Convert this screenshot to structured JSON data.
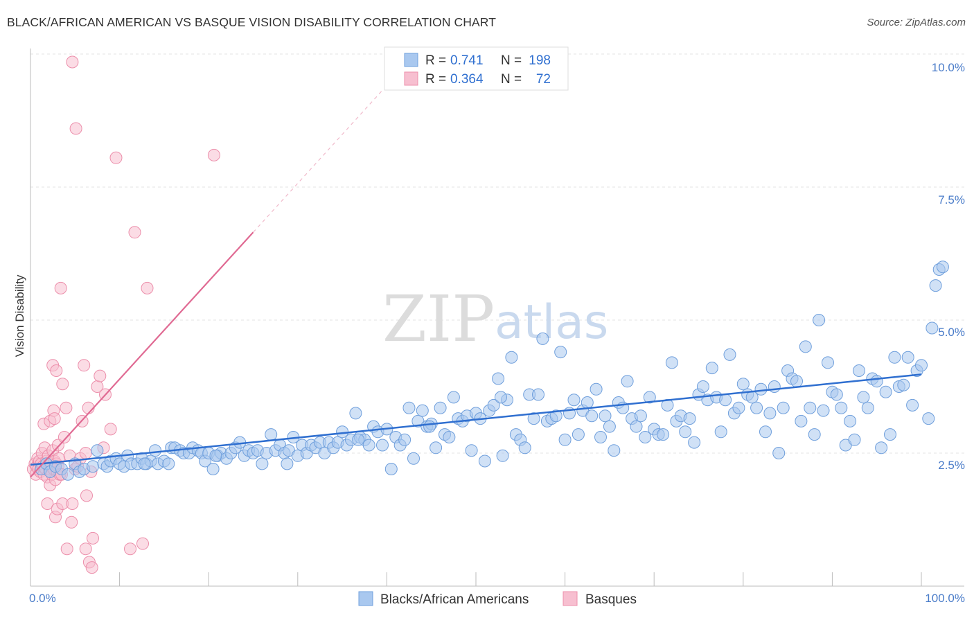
{
  "header": {
    "title": "BLACK/AFRICAN AMERICAN VS BASQUE VISION DISABILITY CORRELATION CHART",
    "source": "Source: ZipAtlas.com"
  },
  "legend": {
    "row1": {
      "r_label": "R =",
      "r_value": "0.741",
      "n_label": "N =",
      "n_value": "198"
    },
    "row2": {
      "r_label": "R =",
      "r_value": "0.364",
      "n_label": "N =",
      "n_value": "72"
    }
  },
  "bottom_legend": {
    "series1": "Blacks/African Americans",
    "series2": "Basques"
  },
  "watermark": {
    "part1": "ZIP",
    "part2": "atlas"
  },
  "colors": {
    "blue_fill": "#a9c8ef",
    "blue_stroke": "#6f9fdc",
    "blue_line": "#2f6fd0",
    "pink_fill": "#f7bfd0",
    "pink_stroke": "#ec8fab",
    "pink_line": "#e06a93",
    "axis_label": "#4a7cc9",
    "grid": "#e3e3e3"
  },
  "chart_data": {
    "type": "scatter",
    "title": "BLACK/AFRICAN AMERICAN VS BASQUE VISION DISABILITY CORRELATION CHART",
    "xlabel": "",
    "ylabel": "Vision Disability",
    "xlim": [
      0,
      100
    ],
    "ylim": [
      0,
      10.5
    ],
    "x_tick_labels": [
      "0.0%",
      "100.0%"
    ],
    "y_ticks": [
      2.5,
      5.0,
      7.5,
      10.0
    ],
    "y_tick_labels": [
      "2.5%",
      "5.0%",
      "7.5%",
      "10.0%"
    ],
    "grid": true,
    "legend_position": "top-center",
    "series": [
      {
        "name": "Blacks/African Americans",
        "R": 0.741,
        "N": 198,
        "trend": {
          "x": [
            0,
            100
          ],
          "y": [
            2.28,
            3.98
          ]
        },
        "points": [
          [
            1.2,
            2.2
          ],
          [
            1.8,
            2.3
          ],
          [
            2.2,
            2.15
          ],
          [
            2.8,
            2.25
          ],
          [
            3.5,
            2.2
          ],
          [
            4.2,
            2.1
          ],
          [
            5.0,
            2.3
          ],
          [
            5.5,
            2.15
          ],
          [
            6.0,
            2.2
          ],
          [
            7.0,
            2.25
          ],
          [
            7.5,
            2.55
          ],
          [
            8.2,
            2.3
          ],
          [
            8.6,
            2.25
          ],
          [
            9.0,
            2.35
          ],
          [
            9.6,
            2.4
          ],
          [
            10.0,
            2.3
          ],
          [
            10.5,
            2.25
          ],
          [
            10.9,
            2.45
          ],
          [
            11.3,
            2.3
          ],
          [
            12.0,
            2.3
          ],
          [
            12.5,
            2.4
          ],
          [
            13.0,
            2.3
          ],
          [
            13.5,
            2.35
          ],
          [
            14.0,
            2.55
          ],
          [
            14.3,
            2.3
          ],
          [
            15.0,
            2.35
          ],
          [
            15.5,
            2.3
          ],
          [
            15.8,
            2.6
          ],
          [
            16.2,
            2.6
          ],
          [
            16.8,
            2.55
          ],
          [
            17.2,
            2.5
          ],
          [
            17.8,
            2.5
          ],
          [
            18.2,
            2.6
          ],
          [
            18.8,
            2.55
          ],
          [
            19.2,
            2.5
          ],
          [
            19.6,
            2.35
          ],
          [
            20.0,
            2.5
          ],
          [
            20.5,
            2.2
          ],
          [
            21.0,
            2.45
          ],
          [
            21.4,
            2.5
          ],
          [
            22.0,
            2.4
          ],
          [
            22.5,
            2.5
          ],
          [
            23.0,
            2.6
          ],
          [
            23.5,
            2.7
          ],
          [
            24.0,
            2.45
          ],
          [
            24.5,
            2.55
          ],
          [
            25.0,
            2.5
          ],
          [
            25.5,
            2.55
          ],
          [
            26.0,
            2.3
          ],
          [
            26.5,
            2.5
          ],
          [
            27.0,
            2.85
          ],
          [
            27.5,
            2.55
          ],
          [
            28.0,
            2.65
          ],
          [
            28.5,
            2.5
          ],
          [
            29.0,
            2.55
          ],
          [
            29.5,
            2.8
          ],
          [
            30.0,
            2.45
          ],
          [
            30.5,
            2.65
          ],
          [
            31.0,
            2.5
          ],
          [
            31.5,
            2.65
          ],
          [
            32.0,
            2.6
          ],
          [
            32.5,
            2.7
          ],
          [
            33.0,
            2.5
          ],
          [
            33.5,
            2.7
          ],
          [
            34.0,
            2.6
          ],
          [
            34.5,
            2.7
          ],
          [
            35.0,
            2.9
          ],
          [
            35.5,
            2.65
          ],
          [
            36.0,
            2.75
          ],
          [
            36.5,
            3.25
          ],
          [
            37.0,
            2.8
          ],
          [
            37.5,
            2.75
          ],
          [
            38.0,
            2.65
          ],
          [
            38.5,
            3.0
          ],
          [
            39.0,
            2.9
          ],
          [
            39.5,
            2.65
          ],
          [
            40.0,
            2.95
          ],
          [
            40.5,
            2.2
          ],
          [
            41.0,
            2.8
          ],
          [
            41.5,
            2.65
          ],
          [
            42.0,
            2.75
          ],
          [
            42.5,
            3.35
          ],
          [
            43.0,
            2.4
          ],
          [
            43.5,
            3.1
          ],
          [
            44.0,
            3.3
          ],
          [
            44.5,
            3.0
          ],
          [
            45.0,
            3.05
          ],
          [
            45.5,
            2.6
          ],
          [
            46.0,
            3.35
          ],
          [
            46.5,
            2.85
          ],
          [
            47.0,
            2.8
          ],
          [
            47.5,
            3.55
          ],
          [
            48.0,
            3.15
          ],
          [
            48.5,
            3.1
          ],
          [
            49.0,
            3.2
          ],
          [
            49.5,
            2.55
          ],
          [
            50.0,
            3.25
          ],
          [
            50.5,
            3.15
          ],
          [
            51.0,
            2.35
          ],
          [
            51.5,
            3.3
          ],
          [
            52.0,
            3.4
          ],
          [
            52.5,
            3.9
          ],
          [
            53.0,
            2.45
          ],
          [
            53.5,
            3.5
          ],
          [
            54.0,
            4.3
          ],
          [
            54.5,
            2.85
          ],
          [
            55.0,
            2.75
          ],
          [
            55.5,
            2.6
          ],
          [
            56.0,
            3.6
          ],
          [
            56.5,
            3.15
          ],
          [
            57.0,
            3.6
          ],
          [
            57.5,
            4.65
          ],
          [
            58.0,
            3.1
          ],
          [
            58.5,
            3.15
          ],
          [
            59.0,
            3.2
          ],
          [
            59.5,
            4.4
          ],
          [
            60.0,
            2.75
          ],
          [
            60.5,
            3.25
          ],
          [
            61.0,
            3.5
          ],
          [
            61.5,
            2.85
          ],
          [
            62.0,
            3.3
          ],
          [
            62.5,
            3.45
          ],
          [
            63.0,
            3.2
          ],
          [
            63.5,
            3.7
          ],
          [
            64.0,
            2.8
          ],
          [
            64.5,
            3.2
          ],
          [
            65.0,
            3.0
          ],
          [
            65.5,
            2.55
          ],
          [
            66.0,
            3.45
          ],
          [
            66.5,
            3.35
          ],
          [
            67.0,
            3.85
          ],
          [
            67.5,
            3.15
          ],
          [
            68.0,
            3.0
          ],
          [
            68.5,
            3.2
          ],
          [
            69.0,
            2.8
          ],
          [
            69.5,
            3.55
          ],
          [
            70.0,
            2.95
          ],
          [
            70.5,
            2.85
          ],
          [
            71.0,
            2.85
          ],
          [
            71.5,
            3.4
          ],
          [
            72.0,
            4.2
          ],
          [
            72.5,
            3.1
          ],
          [
            73.0,
            3.2
          ],
          [
            73.5,
            2.9
          ],
          [
            74.0,
            3.15
          ],
          [
            74.5,
            2.7
          ],
          [
            75.0,
            3.6
          ],
          [
            75.5,
            3.75
          ],
          [
            76.0,
            3.5
          ],
          [
            76.5,
            4.1
          ],
          [
            77.0,
            3.55
          ],
          [
            77.5,
            2.9
          ],
          [
            78.0,
            3.5
          ],
          [
            78.5,
            4.35
          ],
          [
            79.0,
            3.25
          ],
          [
            79.5,
            3.35
          ],
          [
            80.0,
            3.8
          ],
          [
            80.5,
            3.6
          ],
          [
            81.0,
            3.55
          ],
          [
            81.5,
            3.35
          ],
          [
            82.0,
            3.7
          ],
          [
            82.5,
            2.9
          ],
          [
            83.0,
            3.25
          ],
          [
            83.5,
            3.75
          ],
          [
            84.0,
            2.5
          ],
          [
            84.5,
            3.35
          ],
          [
            85.0,
            4.05
          ],
          [
            85.5,
            3.9
          ],
          [
            86.0,
            3.85
          ],
          [
            86.5,
            3.1
          ],
          [
            87.0,
            4.5
          ],
          [
            87.5,
            3.35
          ],
          [
            88.0,
            2.85
          ],
          [
            88.5,
            5.0
          ],
          [
            89.0,
            3.3
          ],
          [
            89.5,
            4.2
          ],
          [
            90.0,
            3.65
          ],
          [
            90.5,
            3.6
          ],
          [
            91.0,
            3.35
          ],
          [
            91.5,
            2.65
          ],
          [
            92.0,
            3.1
          ],
          [
            92.5,
            2.75
          ],
          [
            93.0,
            4.05
          ],
          [
            93.5,
            3.55
          ],
          [
            94.0,
            3.35
          ],
          [
            94.5,
            3.9
          ],
          [
            95.0,
            3.85
          ],
          [
            95.5,
            2.6
          ],
          [
            96.0,
            3.65
          ],
          [
            96.5,
            2.85
          ],
          [
            97.0,
            4.3
          ],
          [
            97.5,
            3.75
          ],
          [
            98.0,
            3.78
          ],
          [
            98.5,
            4.3
          ],
          [
            99.0,
            3.4
          ],
          [
            99.5,
            4.05
          ],
          [
            100.0,
            4.15
          ],
          [
            100.8,
            3.15
          ],
          [
            101.2,
            4.85
          ],
          [
            101.6,
            5.65
          ],
          [
            102.0,
            5.95
          ],
          [
            102.4,
            6.0
          ],
          [
            12.8,
            2.3
          ],
          [
            20.8,
            2.45
          ],
          [
            28.8,
            2.3
          ],
          [
            36.8,
            2.75
          ],
          [
            44.8,
            3.0
          ],
          [
            52.8,
            3.55
          ]
        ]
      },
      {
        "name": "Basques",
        "R": 0.364,
        "N": 72,
        "trend": {
          "x": [
            0,
            25
          ],
          "y": [
            2.05,
            6.65
          ]
        },
        "points": [
          [
            0.3,
            2.2
          ],
          [
            0.5,
            2.3
          ],
          [
            0.6,
            2.1
          ],
          [
            0.7,
            2.25
          ],
          [
            0.8,
            2.4
          ],
          [
            0.9,
            2.2
          ],
          [
            1.0,
            2.35
          ],
          [
            1.1,
            2.15
          ],
          [
            1.2,
            2.3
          ],
          [
            1.3,
            2.5
          ],
          [
            1.4,
            2.25
          ],
          [
            1.5,
            2.1
          ],
          [
            1.6,
            2.6
          ],
          [
            1.7,
            2.2
          ],
          [
            1.8,
            2.35
          ],
          [
            1.9,
            2.05
          ],
          [
            2.0,
            2.45
          ],
          [
            2.1,
            2.2
          ],
          [
            2.2,
            1.9
          ],
          [
            2.3,
            2.3
          ],
          [
            2.4,
            2.1
          ],
          [
            2.5,
            2.55
          ],
          [
            2.6,
            2.2
          ],
          [
            2.7,
            2.35
          ],
          [
            2.8,
            2.0
          ],
          [
            2.9,
            2.3
          ],
          [
            3.0,
            2.15
          ],
          [
            3.1,
            2.25
          ],
          [
            3.2,
            2.4
          ],
          [
            3.3,
            2.1
          ],
          [
            1.5,
            3.05
          ],
          [
            1.9,
            1.55
          ],
          [
            2.2,
            3.1
          ],
          [
            2.5,
            4.15
          ],
          [
            2.6,
            3.3
          ],
          [
            2.7,
            3.15
          ],
          [
            2.8,
            1.3
          ],
          [
            2.9,
            4.05
          ],
          [
            3.1,
            2.65
          ],
          [
            3.3,
            2.1
          ],
          [
            3.0,
            1.45
          ],
          [
            3.4,
            5.6
          ],
          [
            3.6,
            3.8
          ],
          [
            3.8,
            2.8
          ],
          [
            3.6,
            1.55
          ],
          [
            4.0,
            3.35
          ],
          [
            4.1,
            0.7
          ],
          [
            4.4,
            2.45
          ],
          [
            4.6,
            1.2
          ],
          [
            4.7,
            1.55
          ],
          [
            3.5,
            2.1
          ],
          [
            5.0,
            2.2
          ],
          [
            5.3,
            2.25
          ],
          [
            5.6,
            2.4
          ],
          [
            4.7,
            9.85
          ],
          [
            5.1,
            8.6
          ],
          [
            5.8,
            3.1
          ],
          [
            6.0,
            4.15
          ],
          [
            6.2,
            2.5
          ],
          [
            6.3,
            1.7
          ],
          [
            6.5,
            3.35
          ],
          [
            6.6,
            0.45
          ],
          [
            6.8,
            2.15
          ],
          [
            6.9,
            0.35
          ],
          [
            7.0,
            0.9
          ],
          [
            6.2,
            0.7
          ],
          [
            7.5,
            3.75
          ],
          [
            7.8,
            3.95
          ],
          [
            8.4,
            3.6
          ],
          [
            8.2,
            2.6
          ],
          [
            9.0,
            2.95
          ],
          [
            9.6,
            8.05
          ],
          [
            11.2,
            0.7
          ],
          [
            11.7,
            6.65
          ],
          [
            12.6,
            0.8
          ],
          [
            13.1,
            5.6
          ],
          [
            20.6,
            8.1
          ]
        ]
      }
    ]
  }
}
